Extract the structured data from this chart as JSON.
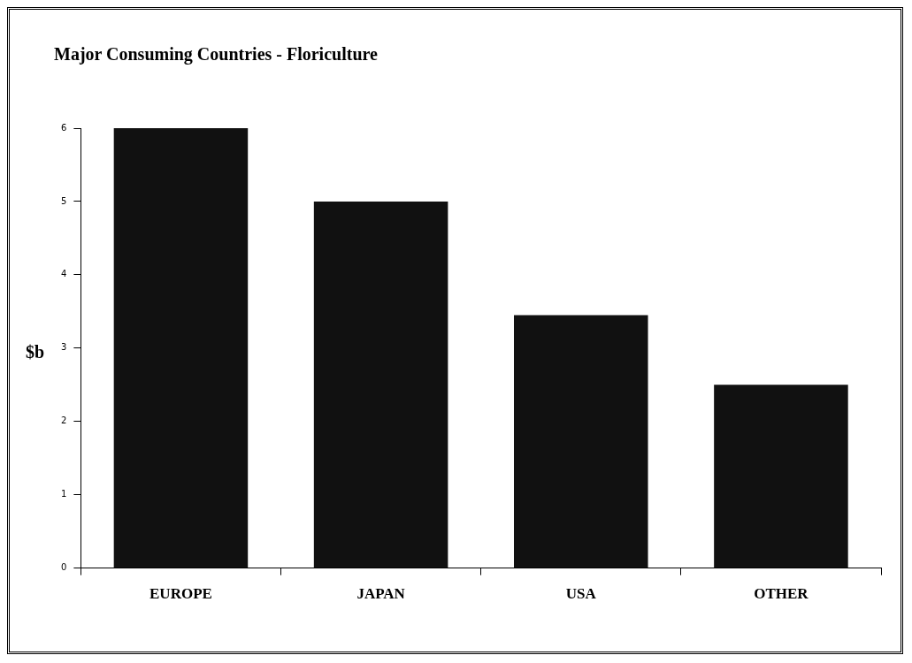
{
  "chart_data": {
    "type": "bar",
    "title": "Major Consuming Countries - Floriculture",
    "ylabel": "$b",
    "categories": [
      "EUROPE",
      "JAPAN",
      "USA",
      "OTHER"
    ],
    "values": [
      6,
      5,
      3.45,
      2.5
    ],
    "color": "#111111",
    "ylim": [
      0,
      6
    ],
    "yticks": [
      0,
      1,
      2,
      3,
      4,
      5,
      6
    ],
    "grid": false,
    "legend": false
  }
}
